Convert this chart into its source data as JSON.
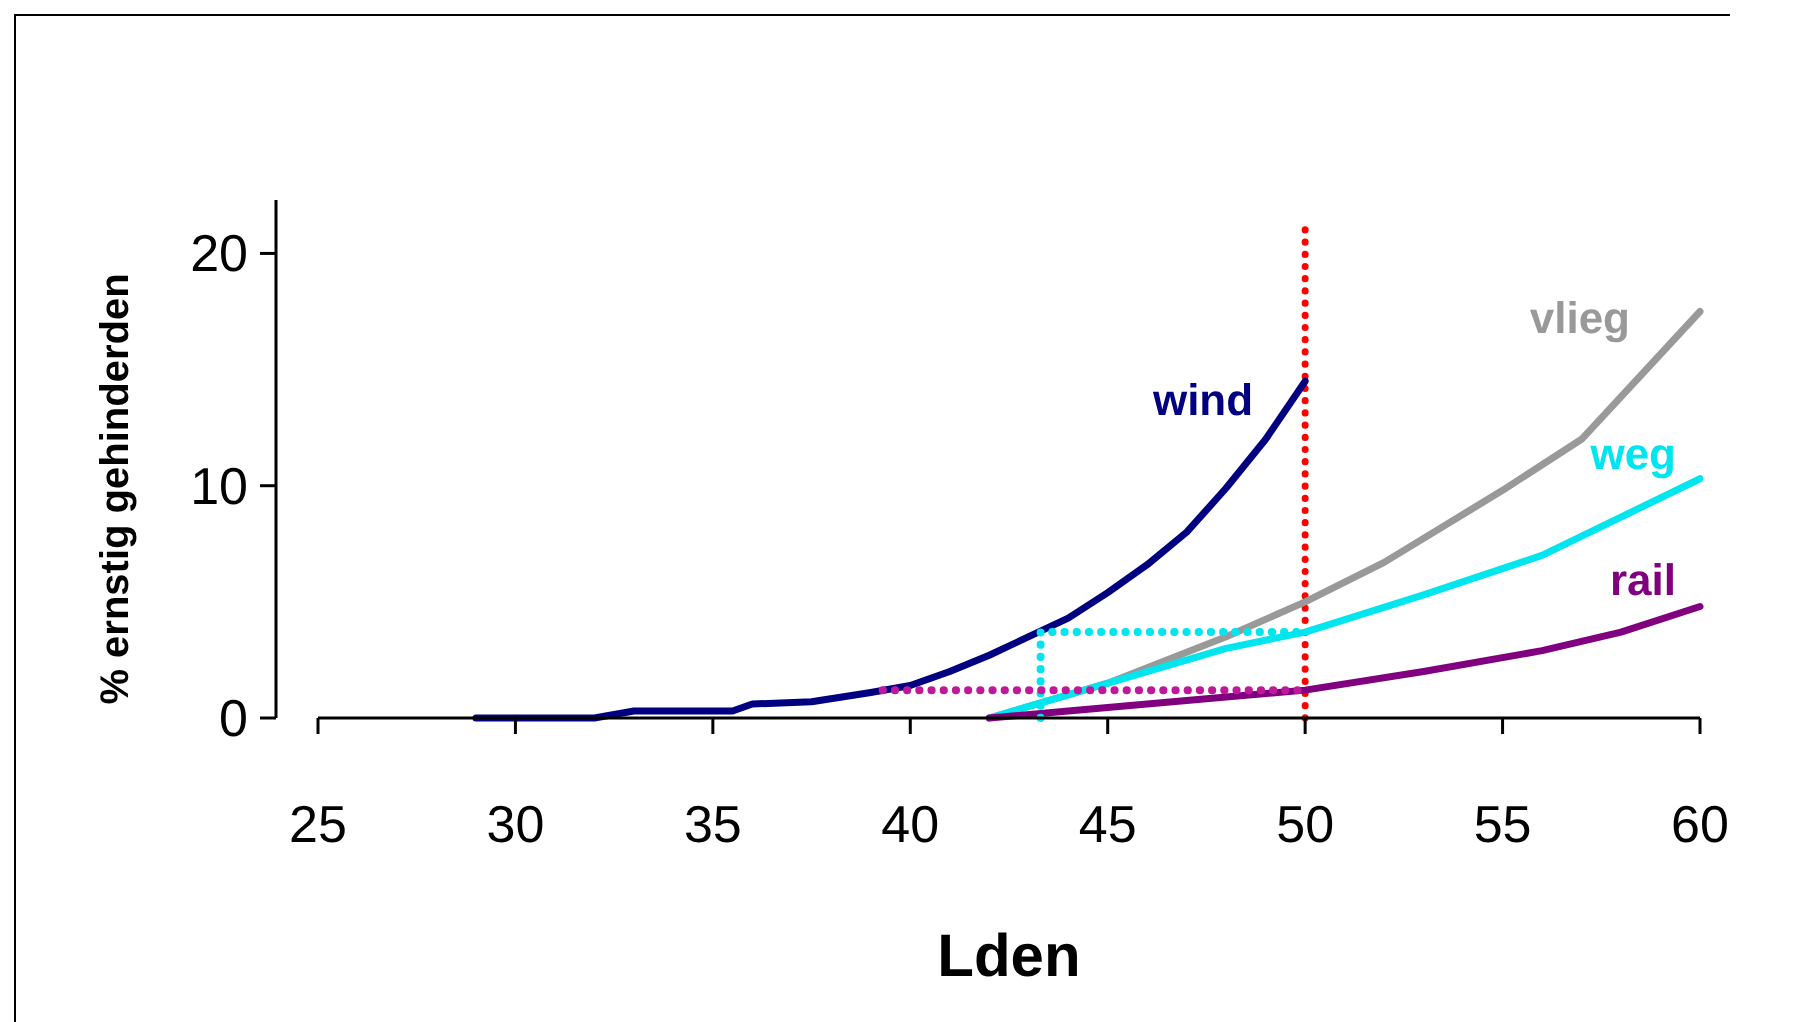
{
  "chart_data": {
    "type": "line",
    "xlabel": "Lden",
    "ylabel": "% ernstig gehinderden",
    "xlim": [
      25,
      60
    ],
    "xticks": [
      25,
      30,
      35,
      40,
      45,
      50,
      55,
      60
    ],
    "ylim": [
      0,
      22.3
    ],
    "yticks": [
      0,
      10,
      20
    ],
    "grid": false,
    "legend": false,
    "marker": "none",
    "line_style": "solid",
    "series": [
      {
        "name": "wind",
        "color": "#000080",
        "x": [
          29,
          32,
          33,
          35.5,
          36,
          37.5,
          39,
          40,
          41,
          42,
          43,
          44,
          45,
          46,
          47,
          48,
          49,
          50
        ],
        "values": [
          0,
          0,
          0.3,
          0.3,
          0.6,
          0.7,
          1.1,
          1.4,
          2,
          2.7,
          3.5,
          4.3,
          5.4,
          6.6,
          8,
          9.9,
          12,
          14.5
        ]
      },
      {
        "name": "vlieg",
        "color": "#999999",
        "x": [
          42,
          45,
          48,
          50,
          52,
          55,
          57,
          60
        ],
        "values": [
          0,
          1.5,
          3.5,
          5,
          6.7,
          9.8,
          12,
          17.5
        ]
      },
      {
        "name": "weg",
        "color": "#00e5ee",
        "x": [
          42,
          44,
          46,
          48,
          50,
          53,
          56,
          60
        ],
        "values": [
          0,
          1,
          2,
          3,
          3.7,
          5.3,
          7,
          10.3
        ]
      },
      {
        "name": "rail",
        "color": "#800080",
        "x": [
          42,
          44,
          46,
          48,
          50,
          53,
          56,
          58,
          60
        ],
        "values": [
          0,
          0.3,
          0.6,
          0.9,
          1.2,
          2,
          2.9,
          3.7,
          4.8
        ]
      },
      {
        "color": "#00e5ee",
        "line_style": "dotted",
        "x": [
          43.3,
          43.3,
          50
        ],
        "values": [
          0,
          3.7,
          3.7
        ]
      },
      {
        "color": "#c0189a",
        "line_style": "dotted",
        "x": [
          39.3,
          50
        ],
        "values": [
          1.2,
          1.2
        ]
      }
    ],
    "ref_lines": [
      {
        "axis": "x",
        "value": 50,
        "color": "#ff0000",
        "line_style": "dotted"
      }
    ]
  }
}
